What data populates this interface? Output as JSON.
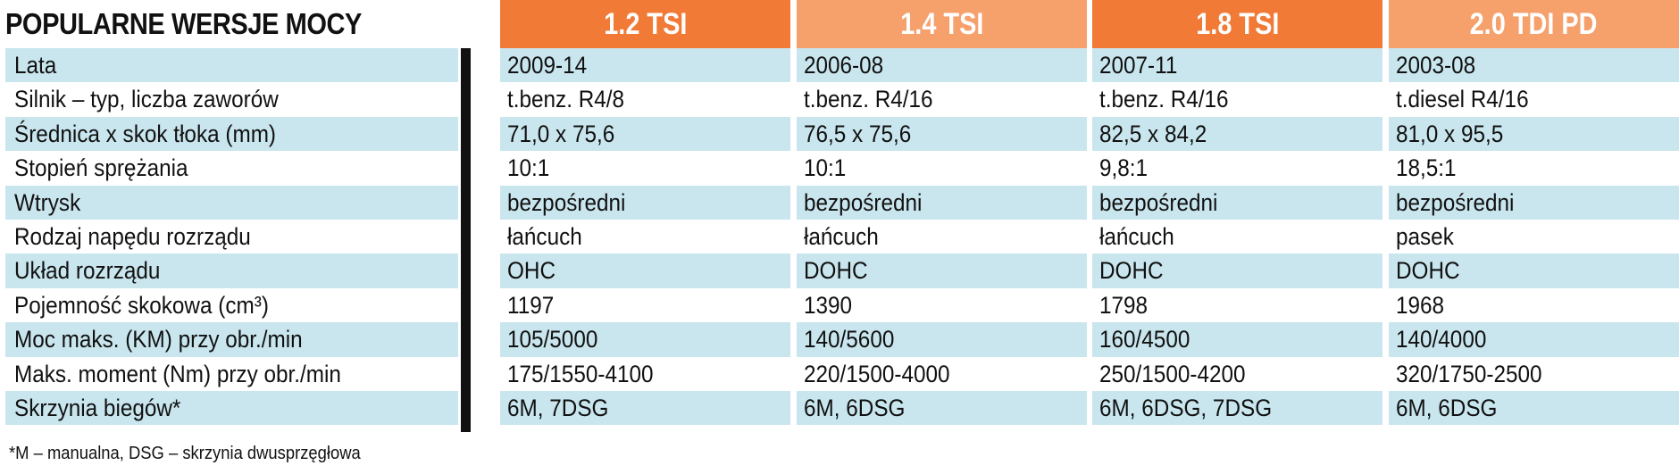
{
  "title": "POPULARNE WERSJE MOCY",
  "colors": {
    "header_dark": "#f07a36",
    "header_light": "#f6a06c",
    "row_band": "#c9e6ee",
    "divider": "#111111"
  },
  "columns": [
    {
      "label": "1.2 TSI",
      "color": "#f07a36"
    },
    {
      "label": "1.4 TSI",
      "color": "#f6a06c"
    },
    {
      "label": "1.8 TSI",
      "color": "#f07a36"
    },
    {
      "label": "2.0 TDI PD",
      "color": "#f6a06c"
    }
  ],
  "rows": [
    {
      "label": "Lata",
      "values": [
        "2009-14",
        "2006-08",
        "2007-11",
        "2003-08"
      ]
    },
    {
      "label": "Silnik – typ, liczba zaworów",
      "values": [
        "t.benz. R4/8",
        "t.benz. R4/16",
        "t.benz. R4/16",
        "t.diesel R4/16"
      ]
    },
    {
      "label": "Średnica x skok tłoka (mm)",
      "values": [
        "71,0 x 75,6",
        "76,5 x 75,6",
        "82,5 x 84,2",
        "81,0 x 95,5"
      ]
    },
    {
      "label": "Stopień sprężania",
      "values": [
        "10:1",
        "10:1",
        "9,8:1",
        "18,5:1"
      ]
    },
    {
      "label": "Wtrysk",
      "values": [
        "bezpośredni",
        "bezpośredni",
        "bezpośredni",
        "bezpośredni"
      ]
    },
    {
      "label": "Rodzaj napędu rozrządu",
      "values": [
        "łańcuch",
        "łańcuch",
        "łańcuch",
        "pasek"
      ]
    },
    {
      "label": "Układ rozrządu",
      "values": [
        "OHC",
        "DOHC",
        "DOHC",
        "DOHC"
      ]
    },
    {
      "label": "Pojemność skokowa (cm³)",
      "values": [
        "1197",
        "1390",
        "1798",
        "1968"
      ]
    },
    {
      "label": "Moc maks. (KM) przy obr./min",
      "values": [
        "105/5000",
        "140/5600",
        "160/4500",
        "140/4000"
      ]
    },
    {
      "label": "Maks. moment (Nm) przy obr./min",
      "values": [
        "175/1550-4100",
        "220/1500-4000",
        "250/1500-4200",
        "320/1750-2500"
      ]
    },
    {
      "label": "Skrzynia biegów*",
      "values": [
        "6M, 7DSG",
        "6M, 6DSG",
        "6M, 6DSG, 7DSG",
        "6M, 6DSG"
      ]
    }
  ],
  "footnote": "*M – manualna, DSG – skrzynia dwusprzęgłowa"
}
